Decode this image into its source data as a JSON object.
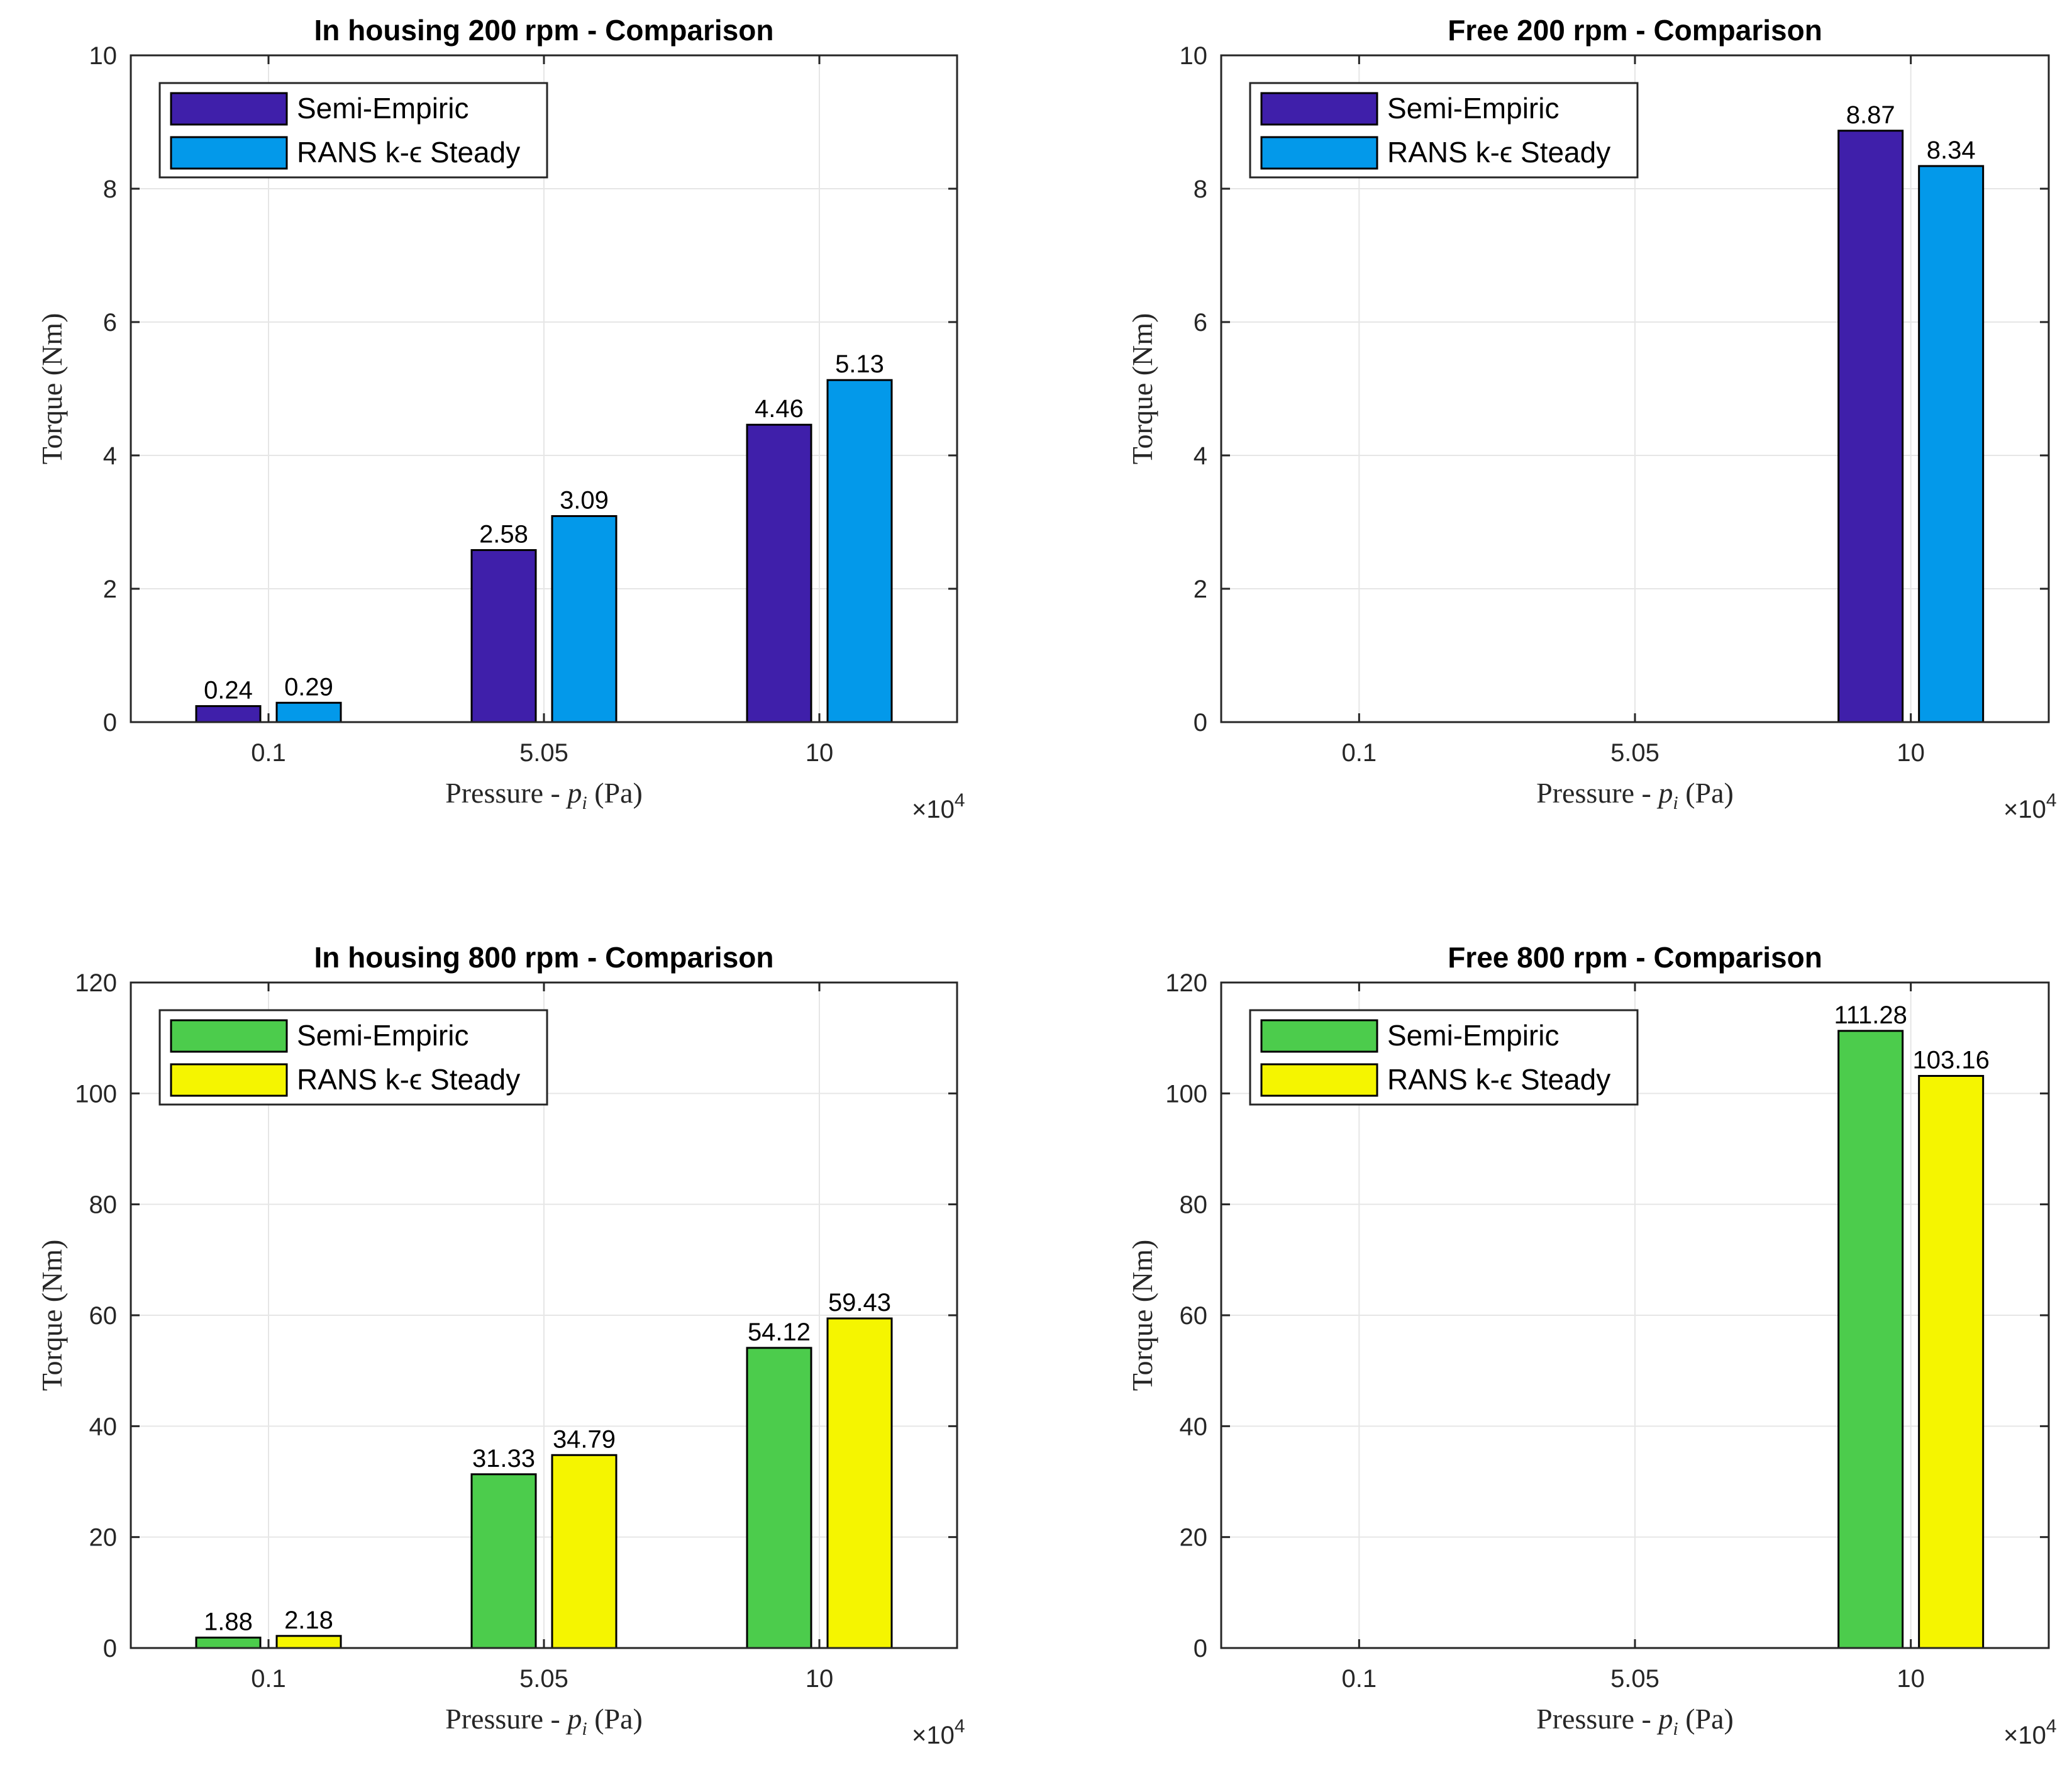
{
  "chart_data": [
    {
      "type": "bar",
      "title": "In housing 200 rpm - Comparison",
      "xlabel": "Pressure - p_i (Pa)",
      "xlabel_main": "Pressure - ",
      "xlabel_var": "p",
      "xlabel_sub": "i",
      "xlabel_unit": " (Pa)",
      "ylabel": "Torque (Nm)",
      "x_exponent": "×10",
      "x_exponent_power": "4",
      "categories": [
        "0.1",
        "5.05",
        "10"
      ],
      "yticks": [
        "0",
        "2",
        "4",
        "6",
        "8",
        "10"
      ],
      "ylim": [
        0,
        10
      ],
      "grid": true,
      "legend_position": "top-left",
      "series": [
        {
          "name": "Semi-Empiric",
          "color": "#3f1faa",
          "values": [
            0.24,
            2.58,
            4.46
          ],
          "labels": [
            "0.24",
            "2.58",
            "4.46"
          ]
        },
        {
          "name": "RANS k-ϵ Steady",
          "color": "#0399ea",
          "values": [
            0.29,
            3.09,
            5.13
          ],
          "labels": [
            "0.29",
            "3.09",
            "5.13"
          ]
        }
      ]
    },
    {
      "type": "bar",
      "title": "Free 200 rpm - Comparison",
      "xlabel": "Pressure - p_i (Pa)",
      "xlabel_main": "Pressure - ",
      "xlabel_var": "p",
      "xlabel_sub": "i",
      "xlabel_unit": " (Pa)",
      "ylabel": "Torque (Nm)",
      "x_exponent": "×10",
      "x_exponent_power": "4",
      "categories": [
        "0.1",
        "5.05",
        "10"
      ],
      "yticks": [
        "0",
        "2",
        "4",
        "6",
        "8",
        "10"
      ],
      "ylim": [
        0,
        10
      ],
      "grid": true,
      "legend_position": "top-left",
      "series": [
        {
          "name": "Semi-Empiric",
          "color": "#3f1faa",
          "values": [
            null,
            null,
            8.87
          ],
          "labels": [
            "",
            "",
            "8.87"
          ]
        },
        {
          "name": "RANS k-ϵ Steady",
          "color": "#0399ea",
          "values": [
            null,
            null,
            8.34
          ],
          "labels": [
            "",
            "",
            "8.34"
          ]
        }
      ]
    },
    {
      "type": "bar",
      "title": "In housing 800 rpm - Comparison",
      "xlabel": "Pressure - p_i (Pa)",
      "xlabel_main": "Pressure - ",
      "xlabel_var": "p",
      "xlabel_sub": "i",
      "xlabel_unit": " (Pa)",
      "ylabel": "Torque (Nm)",
      "x_exponent": "×10",
      "x_exponent_power": "4",
      "categories": [
        "0.1",
        "5.05",
        "10"
      ],
      "yticks": [
        "0",
        "20",
        "40",
        "60",
        "80",
        "100",
        "120"
      ],
      "ylim": [
        0,
        120
      ],
      "grid": true,
      "legend_position": "top-left",
      "series": [
        {
          "name": "Semi-Empiric",
          "color": "#4ccc4c",
          "values": [
            1.88,
            31.33,
            54.12
          ],
          "labels": [
            "1.88",
            "31.33",
            "54.12"
          ]
        },
        {
          "name": "RANS k-ϵ Steady",
          "color": "#f5f500",
          "values": [
            2.18,
            34.79,
            59.43
          ],
          "labels": [
            "2.18",
            "34.79",
            "59.43"
          ]
        }
      ]
    },
    {
      "type": "bar",
      "title": "Free 800 rpm - Comparison",
      "xlabel": "Pressure - p_i (Pa)",
      "xlabel_main": "Pressure - ",
      "xlabel_var": "p",
      "xlabel_sub": "i",
      "xlabel_unit": " (Pa)",
      "ylabel": "Torque (Nm)",
      "x_exponent": "×10",
      "x_exponent_power": "4",
      "categories": [
        "0.1",
        "5.05",
        "10"
      ],
      "yticks": [
        "0",
        "20",
        "40",
        "60",
        "80",
        "100",
        "120"
      ],
      "ylim": [
        0,
        120
      ],
      "grid": true,
      "legend_position": "top-left",
      "series": [
        {
          "name": "Semi-Empiric",
          "color": "#4ccc4c",
          "values": [
            null,
            null,
            111.28
          ],
          "labels": [
            "",
            "",
            "111.28"
          ]
        },
        {
          "name": "RANS k-ϵ Steady",
          "color": "#f5f500",
          "values": [
            null,
            null,
            103.16
          ],
          "labels": [
            "",
            "",
            "103.16"
          ]
        }
      ]
    }
  ]
}
